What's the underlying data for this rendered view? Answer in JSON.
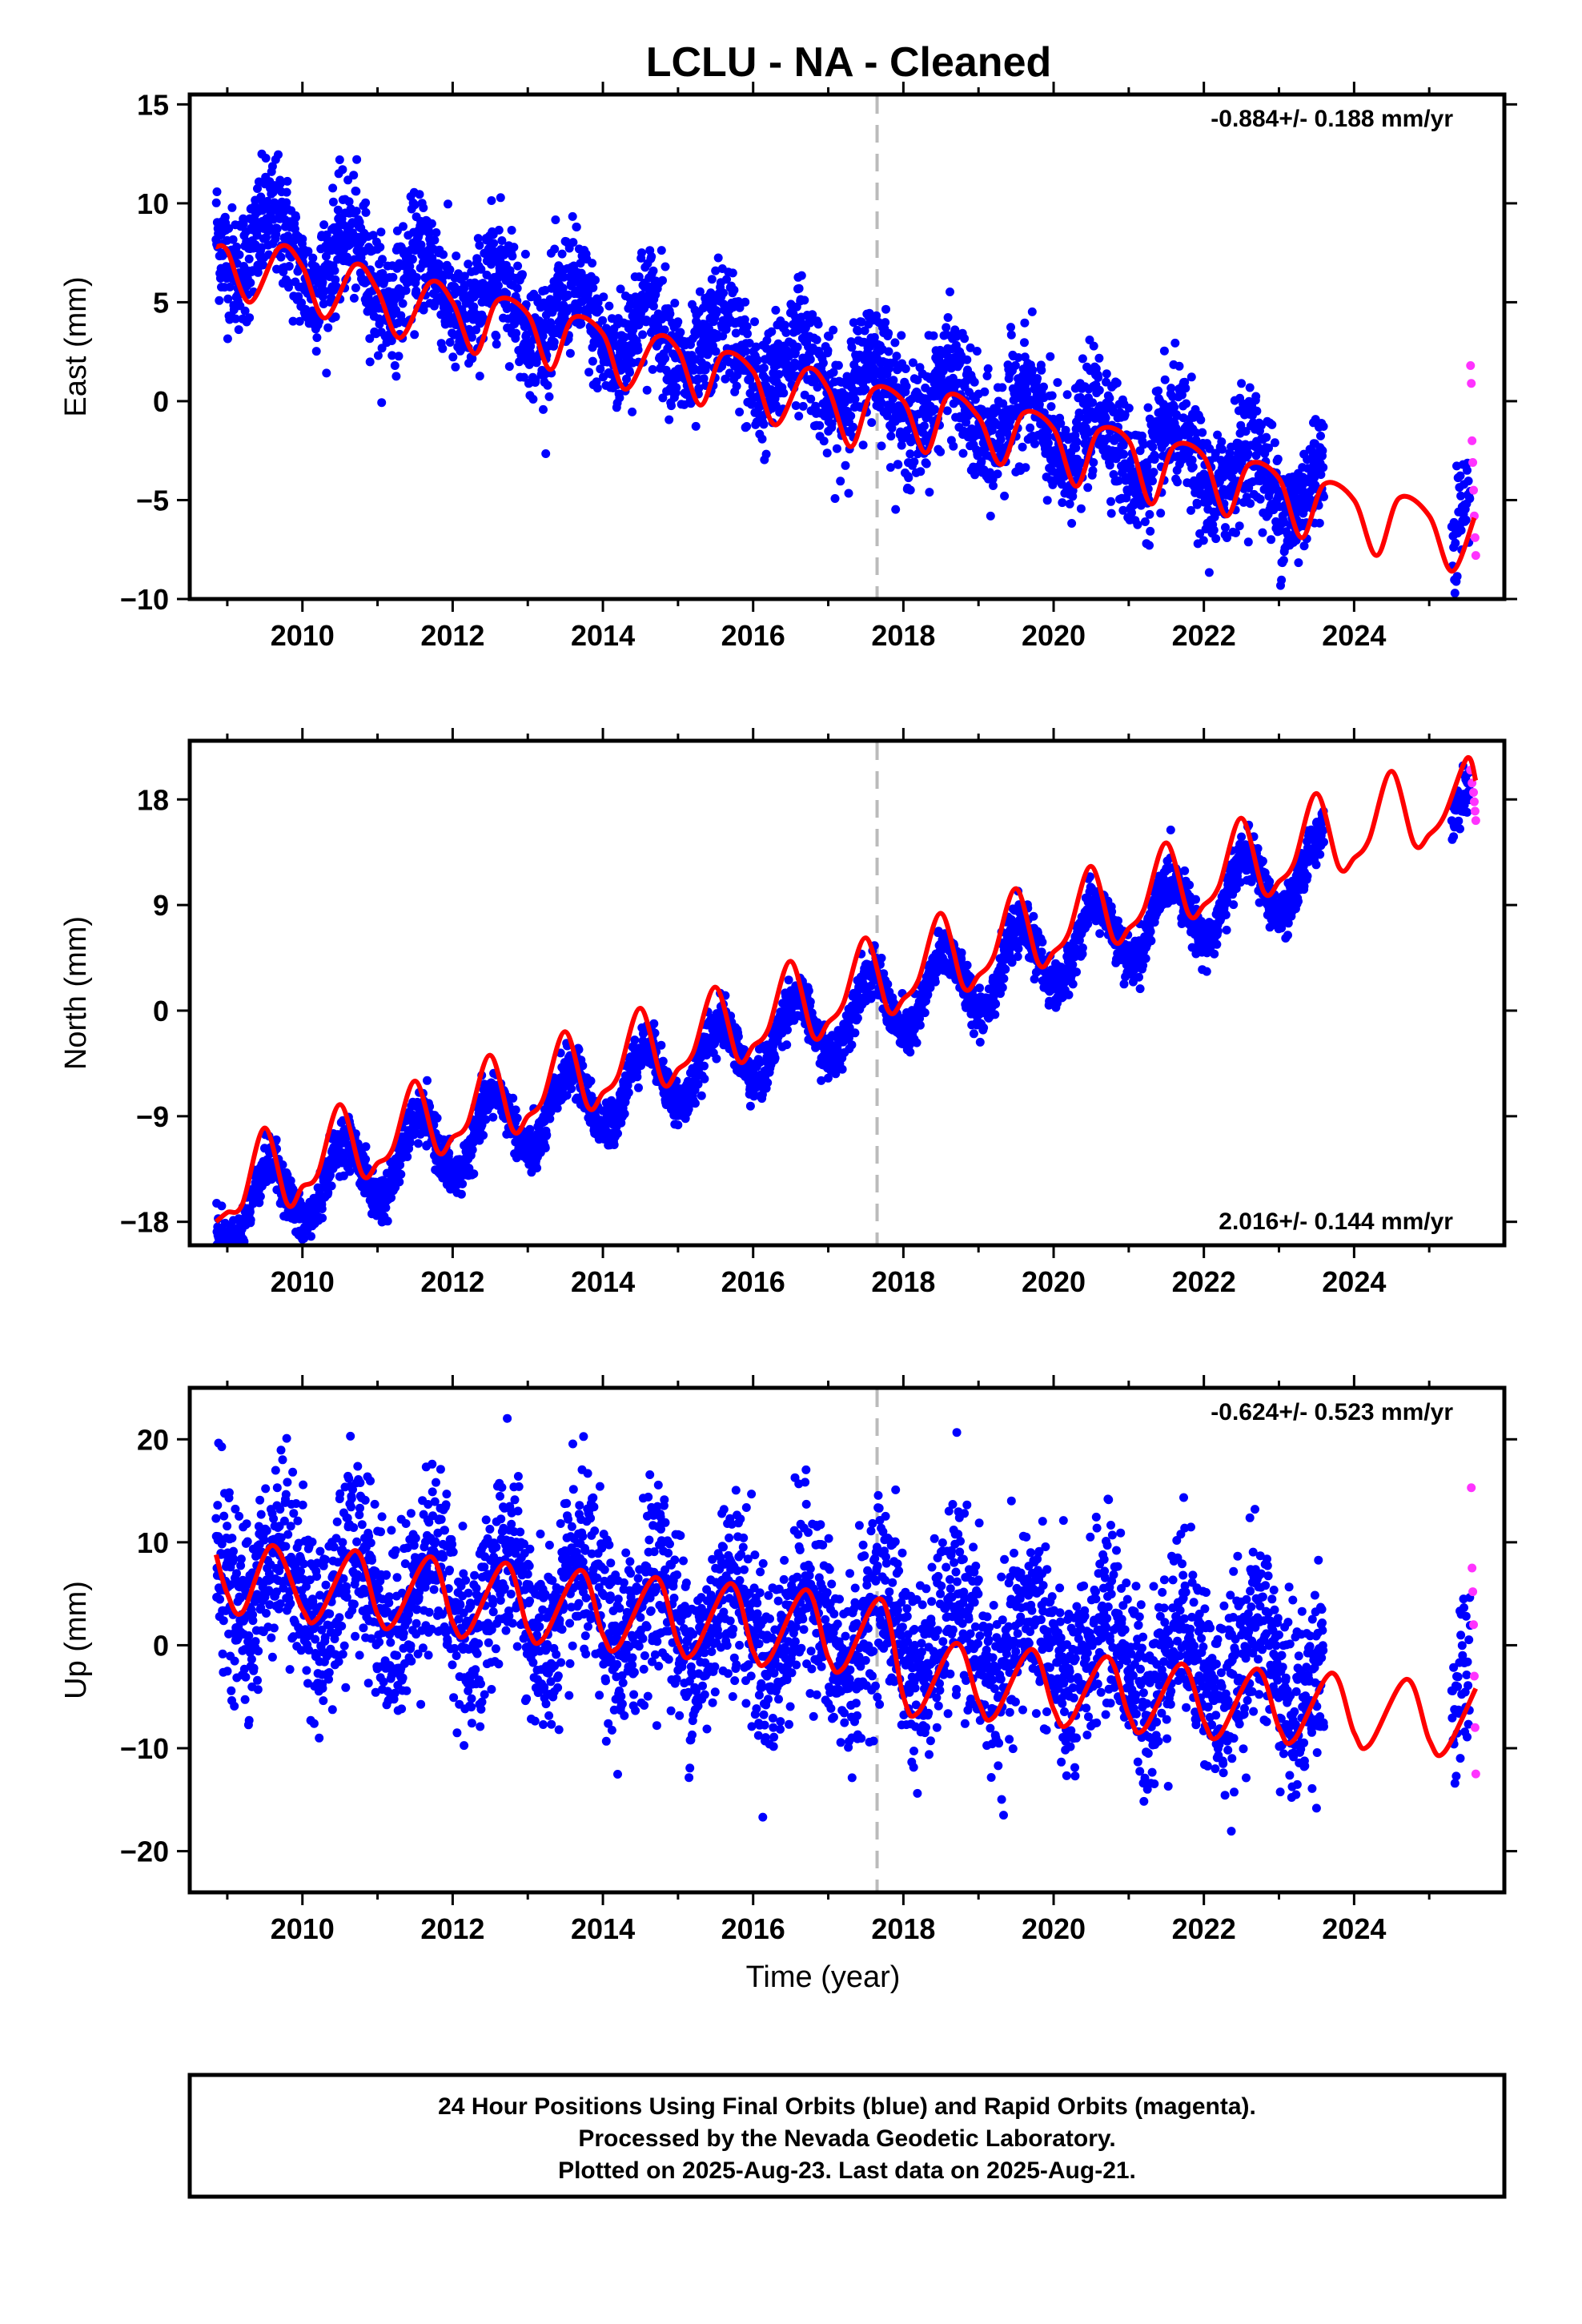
{
  "title": "LCLU  - NA - Cleaned",
  "colors": {
    "final": "#0000ff",
    "rapid": "#ff33ff",
    "model": "#ff0000",
    "marker": "#bbbbbb",
    "frame": "#000000"
  },
  "chart_data": [
    {
      "type": "scatter",
      "panel": "east",
      "ylabel": "East (mm)",
      "xlabel": "",
      "rate": "-0.884+/- 0.188 mm/yr",
      "rate_position": "top-right",
      "xlim": [
        2008.5,
        2026.0
      ],
      "ylim": [
        -10,
        15.5
      ],
      "yticks": [
        -10,
        -5,
        0,
        5,
        10,
        15
      ],
      "xticks": [
        2010,
        2012,
        2014,
        2016,
        2018,
        2020,
        2022,
        2024
      ],
      "vline": 2017.65,
      "data_span": [
        2008.85,
        2023.6
      ],
      "rapid_span": [
        2025.35,
        2025.62
      ],
      "series": [
        {
          "role": "final",
          "values": {
            "trend_at_2009": 8.3,
            "rate": -0.884,
            "annual_amp": 1.6,
            "phase_peak": 0.62,
            "scatter_sd": 1.5
          }
        },
        {
          "role": "rapid",
          "values": {
            "x": [
              2025.55,
              2025.56,
              2025.57,
              2025.58,
              2025.59,
              2025.6,
              2025.61,
              2025.62
            ],
            "y": [
              1.8,
              0.9,
              -2.0,
              -3.1,
              -4.5,
              -5.8,
              -6.9,
              -7.8
            ]
          }
        }
      ],
      "model_curve": {
        "x": [
          2008.85,
          2009.0,
          2009.3,
          2009.7,
          2010.0,
          2010.3,
          2010.7,
          2011.0,
          2011.3,
          2011.7,
          2012.0,
          2012.3,
          2012.6,
          2013.0,
          2013.3,
          2013.6,
          2014.0,
          2014.3,
          2014.7,
          2015.0,
          2015.3,
          2015.6,
          2016.0,
          2016.3,
          2016.7,
          2017.0,
          2017.3,
          2017.6,
          2018.0,
          2018.3,
          2018.6,
          2019.0,
          2019.3,
          2019.6,
          2020.0,
          2020.3,
          2020.6,
          2021.0,
          2021.3,
          2021.6,
          2022.0,
          2022.3,
          2022.6,
          2023.0,
          2023.3,
          2023.6,
          2024.0,
          2024.3,
          2024.6,
          2025.0,
          2025.3,
          2025.6
        ],
        "y": [
          7.8,
          7.6,
          5.0,
          7.8,
          6.8,
          4.2,
          6.9,
          5.6,
          3.2,
          6.0,
          5.0,
          2.4,
          5.1,
          4.4,
          1.6,
          4.2,
          3.4,
          0.6,
          3.2,
          2.6,
          -0.2,
          2.4,
          1.5,
          -1.2,
          1.6,
          0.6,
          -2.3,
          0.6,
          0.0,
          -2.6,
          0.3,
          -0.8,
          -3.2,
          -0.6,
          -1.4,
          -4.3,
          -1.5,
          -2.0,
          -5.2,
          -2.3,
          -2.8,
          -5.8,
          -3.2,
          -3.9,
          -6.9,
          -4.2,
          -5.0,
          -7.8,
          -4.9,
          -5.8,
          -8.6,
          -5.9
        ]
      }
    },
    {
      "type": "scatter",
      "panel": "north",
      "ylabel": "North (mm)",
      "xlabel": "",
      "rate": "2.016+/- 0.144 mm/yr",
      "rate_position": "bottom-right",
      "xlim": [
        2008.5,
        2026.0
      ],
      "ylim": [
        -20,
        23
      ],
      "yticks": [
        -18,
        -9,
        0,
        9,
        18
      ],
      "xticks": [
        2010,
        2012,
        2014,
        2016,
        2018,
        2020,
        2022,
        2024
      ],
      "vline": 2017.65,
      "data_span": [
        2008.85,
        2023.6
      ],
      "rapid_span": [
        2025.45,
        2025.62
      ],
      "series": [
        {
          "role": "final",
          "values": {
            "trend_at_2009": -17.2,
            "rate": 2.016,
            "annual_amp": 3.0,
            "phase_peak": 0.55,
            "scatter_sd": 1.0
          }
        },
        {
          "role": "rapid",
          "values": {
            "x": [
              2025.55,
              2025.57,
              2025.59,
              2025.6,
              2025.61,
              2025.62
            ],
            "y": [
              20.5,
              19.4,
              18.6,
              17.8,
              17.0,
              16.2
            ]
          }
        }
      ],
      "model_curve": {
        "x": [
          2008.85,
          2009.0,
          2009.2,
          2009.5,
          2009.8,
          2010.0,
          2010.2,
          2010.5,
          2010.8,
          2011.0,
          2011.2,
          2011.5,
          2011.8,
          2012.0,
          2012.2,
          2012.5,
          2012.8,
          2013.0,
          2013.2,
          2013.5,
          2013.8,
          2014.0,
          2014.2,
          2014.5,
          2014.8,
          2015.0,
          2015.2,
          2015.5,
          2015.8,
          2016.0,
          2016.2,
          2016.5,
          2016.8,
          2017.0,
          2017.2,
          2017.5,
          2017.8,
          2018.0,
          2018.2,
          2018.5,
          2018.8,
          2019.0,
          2019.2,
          2019.5,
          2019.8,
          2020.0,
          2020.2,
          2020.5,
          2020.8,
          2021.0,
          2021.2,
          2021.5,
          2021.8,
          2022.0,
          2022.2,
          2022.5,
          2022.8,
          2023.0,
          2023.2,
          2023.5,
          2023.8,
          2024.0,
          2024.2,
          2024.5,
          2024.8,
          2025.0,
          2025.2,
          2025.5,
          2025.62
        ],
        "y": [
          -18.0,
          -17.2,
          -16.5,
          -10.0,
          -16.5,
          -15.0,
          -14.0,
          -8.0,
          -14.0,
          -13.0,
          -11.8,
          -6.0,
          -12.0,
          -10.8,
          -9.6,
          -3.8,
          -10.2,
          -9.0,
          -7.6,
          -1.8,
          -8.2,
          -7.0,
          -5.6,
          0.2,
          -6.2,
          -5.0,
          -3.6,
          2.0,
          -4.2,
          -3.0,
          -1.6,
          4.2,
          -2.2,
          -1.0,
          0.6,
          6.2,
          0.0,
          1.0,
          2.6,
          8.3,
          2.0,
          3.0,
          4.6,
          10.4,
          4.0,
          5.0,
          6.6,
          12.3,
          6.0,
          7.0,
          8.6,
          14.3,
          8.2,
          9.0,
          10.6,
          16.4,
          10.1,
          11.0,
          12.6,
          18.5,
          12.2,
          13.0,
          14.6,
          20.4,
          14.2,
          15.0,
          16.6,
          21.5,
          19.6
        ]
      }
    },
    {
      "type": "scatter",
      "panel": "up",
      "ylabel": "Up (mm)",
      "xlabel": "Time (year)",
      "rate": "-0.624+/- 0.523 mm/yr",
      "rate_position": "top-right",
      "xlim": [
        2008.5,
        2026.0
      ],
      "ylim": [
        -24,
        25
      ],
      "yticks": [
        -20,
        -10,
        0,
        10,
        20
      ],
      "xticks": [
        2010,
        2012,
        2014,
        2016,
        2018,
        2020,
        2022,
        2024
      ],
      "vline": 2017.65,
      "data_span": [
        2008.85,
        2023.6
      ],
      "rapid_span": [
        2025.5,
        2025.62
      ],
      "series": [
        {
          "role": "final",
          "values": {
            "trend_at_2009": 6.5,
            "rate": -0.624,
            "annual_amp": 4.2,
            "phase_peak": 0.72,
            "scatter_sd": 4.5
          }
        },
        {
          "role": "rapid",
          "values": {
            "x": [
              2025.56,
              2025.57,
              2025.58,
              2025.59,
              2025.6,
              2025.61,
              2025.62
            ],
            "y": [
              15.3,
              7.5,
              5.2,
              2.0,
              -3.0,
              -8.0,
              -12.5
            ]
          }
        }
      ],
      "model_curve": {
        "x": [
          2008.85,
          2009.0,
          2009.2,
          2009.6,
          2010.0,
          2010.2,
          2010.7,
          2011.0,
          2011.2,
          2011.7,
          2012.0,
          2012.2,
          2012.7,
          2013.0,
          2013.2,
          2013.7,
          2014.0,
          2014.2,
          2014.7,
          2015.0,
          2015.2,
          2015.7,
          2016.0,
          2016.2,
          2016.7,
          2017.0,
          2017.2,
          2017.7,
          2018.0,
          2018.2,
          2018.7,
          2019.0,
          2019.2,
          2019.7,
          2020.0,
          2020.2,
          2020.7,
          2021.0,
          2021.2,
          2021.7,
          2022.0,
          2022.2,
          2022.7,
          2023.0,
          2023.2,
          2023.7,
          2024.0,
          2024.2,
          2024.7,
          2025.0,
          2025.2,
          2025.62
        ],
        "y": [
          8.8,
          5.0,
          3.2,
          9.7,
          3.5,
          2.6,
          9.2,
          3.0,
          2.0,
          8.6,
          2.2,
          1.2,
          8.0,
          1.6,
          0.6,
          7.3,
          1.0,
          -0.2,
          6.6,
          0.2,
          -0.8,
          6.0,
          -0.6,
          -1.5,
          5.4,
          -1.2,
          -2.2,
          4.5,
          -5.0,
          -6.5,
          0.2,
          -5.5,
          -7.0,
          -0.4,
          -6.2,
          -7.6,
          -1.1,
          -6.8,
          -8.2,
          -1.8,
          -7.4,
          -8.8,
          -2.3,
          -8.0,
          -9.2,
          -2.7,
          -8.5,
          -9.7,
          -3.3,
          -9.2,
          -10.4,
          -4.2
        ]
      }
    }
  ],
  "footer": {
    "line1": "24 Hour Positions Using Final Orbits (blue) and Rapid Orbits (magenta).",
    "line2": "Processed by the Nevada Geodetic Laboratory.",
    "line3": "Plotted on 2025-Aug-23. Last data on 2025-Aug-21."
  }
}
